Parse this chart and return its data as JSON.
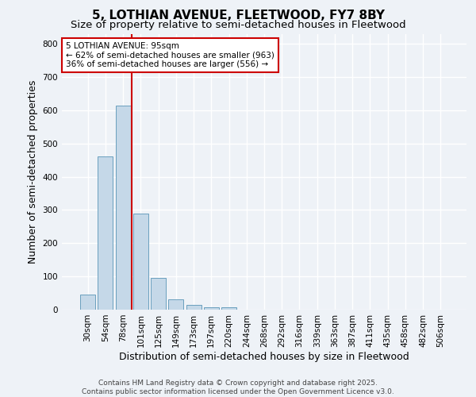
{
  "title1": "5, LOTHIAN AVENUE, FLEETWOOD, FY7 8BY",
  "title2": "Size of property relative to semi-detached houses in Fleetwood",
  "xlabel": "Distribution of semi-detached houses by size in Fleetwood",
  "ylabel": "Number of semi-detached properties",
  "categories": [
    "30sqm",
    "54sqm",
    "78sqm",
    "101sqm",
    "125sqm",
    "149sqm",
    "173sqm",
    "197sqm",
    "220sqm",
    "244sqm",
    "268sqm",
    "292sqm",
    "316sqm",
    "339sqm",
    "363sqm",
    "387sqm",
    "411sqm",
    "435sqm",
    "458sqm",
    "482sqm",
    "506sqm"
  ],
  "values": [
    45,
    460,
    615,
    290,
    95,
    32,
    14,
    8,
    8,
    0,
    0,
    0,
    0,
    0,
    0,
    0,
    0,
    0,
    0,
    0,
    0
  ],
  "bar_color": "#c5d8e8",
  "bar_edge_color": "#6a9fbe",
  "vline_color": "#cc0000",
  "annotation_text": "5 LOTHIAN AVENUE: 95sqm\n← 62% of semi-detached houses are smaller (963)\n36% of semi-detached houses are larger (556) →",
  "annotation_box_color": "#ffffff",
  "annotation_box_edge": "#cc0000",
  "ylim": [
    0,
    830
  ],
  "yticks": [
    0,
    100,
    200,
    300,
    400,
    500,
    600,
    700,
    800
  ],
  "footnote": "Contains HM Land Registry data © Crown copyright and database right 2025.\nContains public sector information licensed under the Open Government Licence v3.0.",
  "background_color": "#eef2f7",
  "grid_color": "#ffffff",
  "title_fontsize": 11,
  "subtitle_fontsize": 9.5,
  "axis_label_fontsize": 9,
  "tick_fontsize": 7.5,
  "annotation_fontsize": 7.5,
  "footnote_fontsize": 6.5
}
